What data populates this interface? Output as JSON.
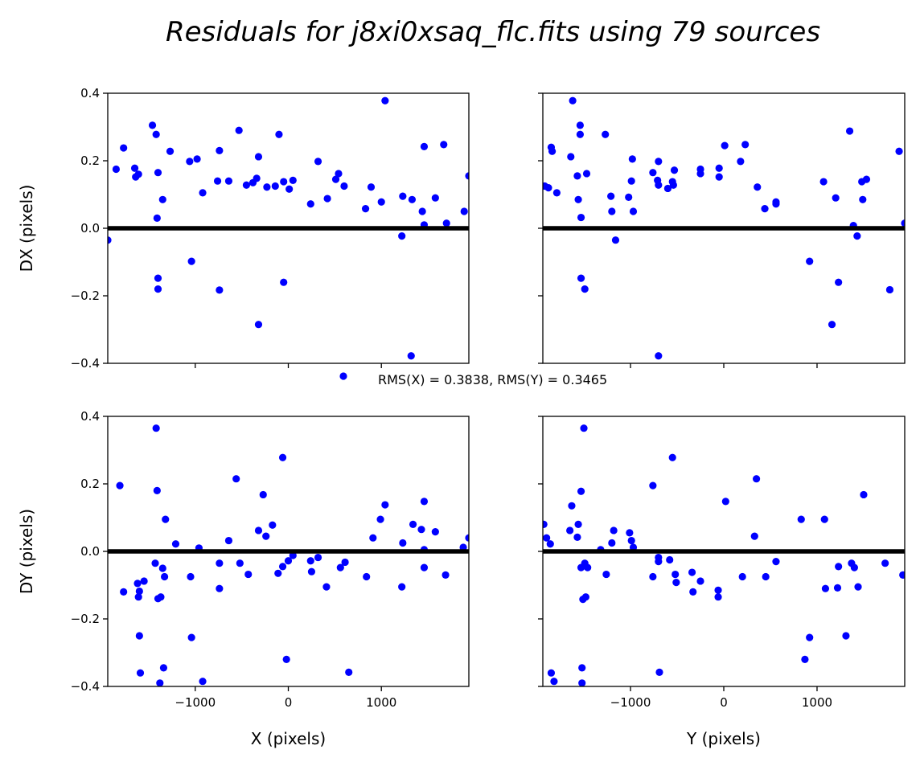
{
  "title": "Residuals for j8xi0xsaq_flc.fits using 79 sources",
  "legend": {
    "label": "RMS(X) = 0.3838, RMS(Y) = 0.3465",
    "marker_color": "#0000ff",
    "placement": "center"
  },
  "colors": {
    "points": "#0000ff",
    "zero_line": "#000000"
  },
  "chart_data": [
    {
      "type": "scatter",
      "panel": "top-left",
      "ylabel": "DX (pixels)",
      "xlabel": "",
      "xlim": [
        -1940,
        1940
      ],
      "ylim": [
        -0.4,
        0.4
      ],
      "xticks": [
        -1000,
        0,
        1000
      ],
      "yticks": [
        -0.4,
        -0.2,
        0.0,
        0.2,
        0.4
      ],
      "xticklabels": [
        "",
        "",
        ""
      ],
      "yticklabels": [
        "−0.4",
        "−0.2",
        "0.0",
        "0.2",
        "0.4"
      ],
      "zero_line": 0,
      "points": [
        [
          -1940,
          -0.035
        ],
        [
          -1850,
          0.175
        ],
        [
          -1770,
          0.238
        ],
        [
          -1650,
          0.178
        ],
        [
          -1640,
          0.152
        ],
        [
          -1610,
          0.16
        ],
        [
          -1460,
          0.305
        ],
        [
          -1420,
          0.278
        ],
        [
          -1410,
          0.03
        ],
        [
          -1400,
          -0.148
        ],
        [
          -1400,
          -0.18
        ],
        [
          -1400,
          0.165
        ],
        [
          -1350,
          0.085
        ],
        [
          -1270,
          0.228
        ],
        [
          -1060,
          0.198
        ],
        [
          -1040,
          -0.098
        ],
        [
          -980,
          0.205
        ],
        [
          -920,
          0.105
        ],
        [
          -760,
          0.14
        ],
        [
          -740,
          0.23
        ],
        [
          -740,
          -0.183
        ],
        [
          -640,
          0.14
        ],
        [
          -530,
          0.29
        ],
        [
          -450,
          0.128
        ],
        [
          -380,
          0.135
        ],
        [
          -340,
          0.148
        ],
        [
          -320,
          -0.285
        ],
        [
          -320,
          0.212
        ],
        [
          -230,
          0.122
        ],
        [
          -140,
          0.125
        ],
        [
          -100,
          0.278
        ],
        [
          -50,
          0.138
        ],
        [
          -50,
          -0.16
        ],
        [
          10,
          0.116
        ],
        [
          50,
          0.142
        ],
        [
          240,
          0.072
        ],
        [
          320,
          0.198
        ],
        [
          420,
          0.088
        ],
        [
          510,
          0.145
        ],
        [
          540,
          0.162
        ],
        [
          600,
          0.125
        ],
        [
          830,
          0.058
        ],
        [
          890,
          0.122
        ],
        [
          1000,
          0.078
        ],
        [
          1040,
          0.378
        ],
        [
          1220,
          -0.023
        ],
        [
          1230,
          0.095
        ],
        [
          1320,
          -0.378
        ],
        [
          1330,
          0.085
        ],
        [
          1440,
          0.05
        ],
        [
          1460,
          0.242
        ],
        [
          1460,
          0.01
        ],
        [
          1580,
          0.09
        ],
        [
          1670,
          0.248
        ],
        [
          1700,
          0.015
        ],
        [
          1890,
          0.05
        ],
        [
          1940,
          0.155
        ]
      ]
    },
    {
      "type": "scatter",
      "panel": "top-right",
      "ylabel": "",
      "xlabel": "",
      "xlim": [
        -1940,
        1940
      ],
      "ylim": [
        -0.4,
        0.4
      ],
      "xticks": [
        -1000,
        0,
        1000
      ],
      "yticks": [
        -0.4,
        -0.2,
        0.0,
        0.2,
        0.4
      ],
      "xticklabels": [
        "",
        "",
        ""
      ],
      "yticklabels": [
        "",
        "",
        "",
        "",
        ""
      ],
      "zero_line": 0,
      "points": [
        [
          -1920,
          0.125
        ],
        [
          -1880,
          0.12
        ],
        [
          -1850,
          0.24
        ],
        [
          -1840,
          0.228
        ],
        [
          -1790,
          0.105
        ],
        [
          -1640,
          0.212
        ],
        [
          -1620,
          0.378
        ],
        [
          -1570,
          0.155
        ],
        [
          -1560,
          0.085
        ],
        [
          -1540,
          0.305
        ],
        [
          -1540,
          0.278
        ],
        [
          -1530,
          0.032
        ],
        [
          -1530,
          -0.148
        ],
        [
          -1490,
          -0.18
        ],
        [
          -1470,
          0.162
        ],
        [
          -1270,
          0.278
        ],
        [
          -1210,
          0.095
        ],
        [
          -1200,
          0.05
        ],
        [
          -1160,
          -0.035
        ],
        [
          -1020,
          0.092
        ],
        [
          -990,
          0.14
        ],
        [
          -980,
          0.205
        ],
        [
          -970,
          0.05
        ],
        [
          -760,
          0.165
        ],
        [
          -710,
          0.142
        ],
        [
          -700,
          0.198
        ],
        [
          -700,
          0.128
        ],
        [
          -700,
          -0.378
        ],
        [
          -600,
          0.118
        ],
        [
          -550,
          0.138
        ],
        [
          -540,
          0.128
        ],
        [
          -530,
          0.172
        ],
        [
          -250,
          0.175
        ],
        [
          -250,
          0.162
        ],
        [
          -50,
          0.178
        ],
        [
          -50,
          0.152
        ],
        [
          10,
          0.245
        ],
        [
          180,
          0.198
        ],
        [
          230,
          0.248
        ],
        [
          360,
          0.122
        ],
        [
          440,
          0.058
        ],
        [
          560,
          0.078
        ],
        [
          560,
          0.072
        ],
        [
          920,
          -0.098
        ],
        [
          1070,
          0.138
        ],
        [
          1160,
          -0.285
        ],
        [
          1200,
          0.09
        ],
        [
          1230,
          -0.16
        ],
        [
          1350,
          0.288
        ],
        [
          1390,
          0.008
        ],
        [
          1430,
          -0.023
        ],
        [
          1480,
          0.138
        ],
        [
          1490,
          0.085
        ],
        [
          1530,
          0.145
        ],
        [
          1780,
          -0.182
        ],
        [
          1880,
          0.228
        ],
        [
          1940,
          0.015
        ]
      ]
    },
    {
      "type": "scatter",
      "panel": "bottom-left",
      "ylabel": "DY (pixels)",
      "xlabel": "X (pixels)",
      "xlim": [
        -1940,
        1940
      ],
      "ylim": [
        -0.4,
        0.4
      ],
      "xticks": [
        -1000,
        0,
        1000
      ],
      "yticks": [
        -0.4,
        -0.2,
        0.0,
        0.2,
        0.4
      ],
      "xticklabels": [
        "−1000",
        "0",
        "1000"
      ],
      "yticklabels": [
        "−0.4",
        "−0.2",
        "0.0",
        "0.2",
        "0.4"
      ],
      "zero_line": 0,
      "points": [
        [
          -1810,
          0.195
        ],
        [
          -1770,
          -0.12
        ],
        [
          -1620,
          -0.095
        ],
        [
          -1610,
          -0.135
        ],
        [
          -1600,
          -0.118
        ],
        [
          -1600,
          -0.25
        ],
        [
          -1590,
          -0.36
        ],
        [
          -1550,
          -0.088
        ],
        [
          -1430,
          -0.035
        ],
        [
          -1420,
          0.365
        ],
        [
          -1410,
          0.18
        ],
        [
          -1400,
          -0.14
        ],
        [
          -1380,
          -0.39
        ],
        [
          -1370,
          -0.135
        ],
        [
          -1350,
          -0.05
        ],
        [
          -1340,
          -0.345
        ],
        [
          -1330,
          -0.075
        ],
        [
          -1320,
          0.095
        ],
        [
          -1210,
          0.022
        ],
        [
          -1050,
          -0.075
        ],
        [
          -1040,
          -0.255
        ],
        [
          -960,
          0.01
        ],
        [
          -920,
          -0.385
        ],
        [
          -740,
          -0.035
        ],
        [
          -740,
          -0.11
        ],
        [
          -640,
          0.032
        ],
        [
          -560,
          0.215
        ],
        [
          -520,
          -0.035
        ],
        [
          -430,
          -0.068
        ],
        [
          -320,
          0.062
        ],
        [
          -270,
          0.168
        ],
        [
          -240,
          0.045
        ],
        [
          -170,
          0.078
        ],
        [
          -110,
          -0.065
        ],
        [
          -60,
          -0.045
        ],
        [
          -60,
          0.278
        ],
        [
          -20,
          -0.32
        ],
        [
          0,
          -0.028
        ],
        [
          50,
          -0.012
        ],
        [
          240,
          -0.028
        ],
        [
          250,
          -0.06
        ],
        [
          320,
          -0.018
        ],
        [
          410,
          -0.105
        ],
        [
          560,
          -0.048
        ],
        [
          610,
          -0.032
        ],
        [
          650,
          -0.358
        ],
        [
          840,
          -0.075
        ],
        [
          910,
          0.04
        ],
        [
          990,
          0.095
        ],
        [
          1040,
          0.138
        ],
        [
          1220,
          -0.105
        ],
        [
          1230,
          0.025
        ],
        [
          1340,
          0.08
        ],
        [
          1430,
          0.065
        ],
        [
          1460,
          -0.048
        ],
        [
          1460,
          0.148
        ],
        [
          1460,
          0.005
        ],
        [
          1580,
          0.058
        ],
        [
          1690,
          -0.07
        ],
        [
          1880,
          0.012
        ],
        [
          1940,
          0.04
        ]
      ]
    },
    {
      "type": "scatter",
      "panel": "bottom-right",
      "ylabel": "",
      "xlabel": "Y (pixels)",
      "xlim": [
        -1940,
        1940
      ],
      "ylim": [
        -0.4,
        0.4
      ],
      "xticks": [
        -1000,
        0,
        1000
      ],
      "yticks": [
        -0.4,
        -0.2,
        0.0,
        0.2,
        0.4
      ],
      "xticklabels": [
        "−1000",
        "0",
        "1000"
      ],
      "yticklabels": [
        "",
        "",
        "",
        "",
        ""
      ],
      "zero_line": 0,
      "points": [
        [
          -1930,
          0.08
        ],
        [
          -1900,
          0.04
        ],
        [
          -1860,
          0.022
        ],
        [
          -1850,
          -0.36
        ],
        [
          -1820,
          -0.385
        ],
        [
          -1650,
          0.062
        ],
        [
          -1630,
          0.135
        ],
        [
          -1570,
          0.042
        ],
        [
          -1560,
          0.08
        ],
        [
          -1530,
          -0.048
        ],
        [
          -1530,
          0.178
        ],
        [
          -1520,
          -0.345
        ],
        [
          -1520,
          -0.39
        ],
        [
          -1510,
          -0.142
        ],
        [
          -1500,
          0.365
        ],
        [
          -1490,
          -0.035
        ],
        [
          -1480,
          -0.135
        ],
        [
          -1460,
          -0.048
        ],
        [
          -1320,
          0.005
        ],
        [
          -1260,
          -0.068
        ],
        [
          -1200,
          0.025
        ],
        [
          -1180,
          0.062
        ],
        [
          -1010,
          0.055
        ],
        [
          -990,
          0.032
        ],
        [
          -970,
          0.012
        ],
        [
          -760,
          0.195
        ],
        [
          -760,
          -0.075
        ],
        [
          -700,
          -0.018
        ],
        [
          -700,
          -0.03
        ],
        [
          -690,
          -0.358
        ],
        [
          -580,
          -0.025
        ],
        [
          -550,
          0.278
        ],
        [
          -520,
          -0.068
        ],
        [
          -510,
          -0.092
        ],
        [
          -340,
          -0.062
        ],
        [
          -330,
          -0.12
        ],
        [
          -250,
          -0.088
        ],
        [
          -60,
          -0.115
        ],
        [
          -60,
          -0.135
        ],
        [
          20,
          0.148
        ],
        [
          200,
          -0.075
        ],
        [
          330,
          0.045
        ],
        [
          350,
          0.215
        ],
        [
          450,
          -0.075
        ],
        [
          560,
          -0.03
        ],
        [
          830,
          0.095
        ],
        [
          870,
          -0.32
        ],
        [
          920,
          -0.255
        ],
        [
          1080,
          0.095
        ],
        [
          1090,
          -0.11
        ],
        [
          1220,
          -0.108
        ],
        [
          1230,
          -0.045
        ],
        [
          1310,
          -0.25
        ],
        [
          1370,
          -0.035
        ],
        [
          1400,
          -0.048
        ],
        [
          1440,
          -0.105
        ],
        [
          1500,
          0.168
        ],
        [
          1730,
          -0.035
        ],
        [
          1920,
          -0.07
        ]
      ]
    }
  ]
}
